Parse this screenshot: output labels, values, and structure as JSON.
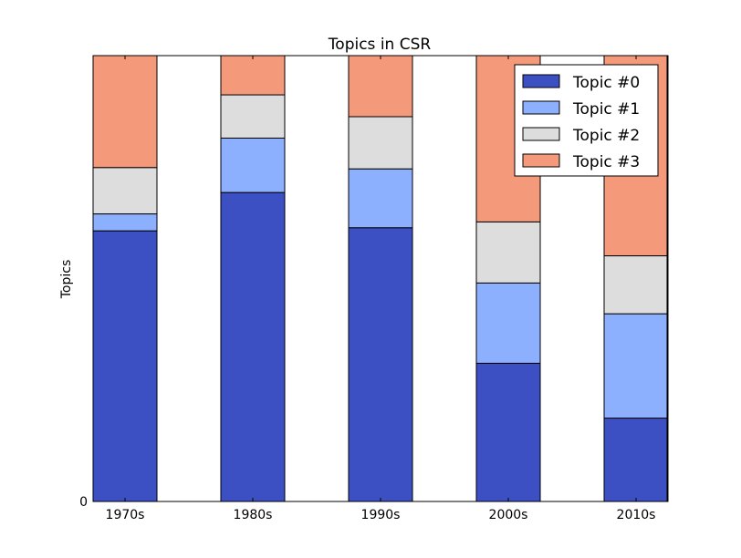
{
  "chart_data": {
    "type": "bar",
    "stacked": true,
    "title": "Topics in CSR",
    "xlabel": "",
    "ylabel": "Topics",
    "ylim": [
      0,
      1
    ],
    "yticks": [
      "0"
    ],
    "categories": [
      "1970s",
      "1980s",
      "1990s",
      "2000s",
      "2010s"
    ],
    "series": [
      {
        "name": "Topic #0",
        "color": "#3d50c3",
        "values": [
          0.607,
          0.693,
          0.614,
          0.31,
          0.187
        ]
      },
      {
        "name": "Topic #1",
        "color": "#8db0fe",
        "values": [
          0.038,
          0.122,
          0.132,
          0.18,
          0.234
        ]
      },
      {
        "name": "Topic #2",
        "color": "#dddddd",
        "values": [
          0.104,
          0.097,
          0.117,
          0.137,
          0.13
        ]
      },
      {
        "name": "Topic #3",
        "color": "#f49a7b",
        "values": [
          0.251,
          0.088,
          0.137,
          0.373,
          0.449
        ]
      }
    ],
    "legend_position": "top-right",
    "grid": false
  }
}
